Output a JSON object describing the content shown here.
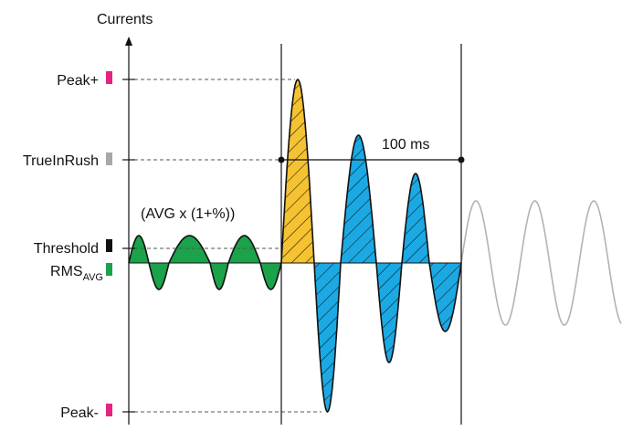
{
  "axis": {
    "y_title": "Currents"
  },
  "levels": {
    "peak_plus": {
      "label": "Peak+",
      "color": "#e6237e"
    },
    "true_inrush": {
      "label": "TrueInRush",
      "color": "#a6a8ab"
    },
    "threshold": {
      "label": "Threshold",
      "color": "#111111"
    },
    "rms_avg": {
      "label": "RMS",
      "subscript": "AVG",
      "color": "#1aa34a"
    },
    "peak_minus": {
      "label": "Peak-",
      "color": "#e6237e"
    }
  },
  "annotations": {
    "threshold_formula": "(AVG x (1+%))",
    "duration": "100 ms"
  },
  "colors": {
    "pre_event_wave": "#1aa34a",
    "first_peak_fill": "#f5c232",
    "inrush_fill": "#1ba9e4",
    "post_event_wave": "#b3b3b3",
    "axis": "#111111"
  }
}
